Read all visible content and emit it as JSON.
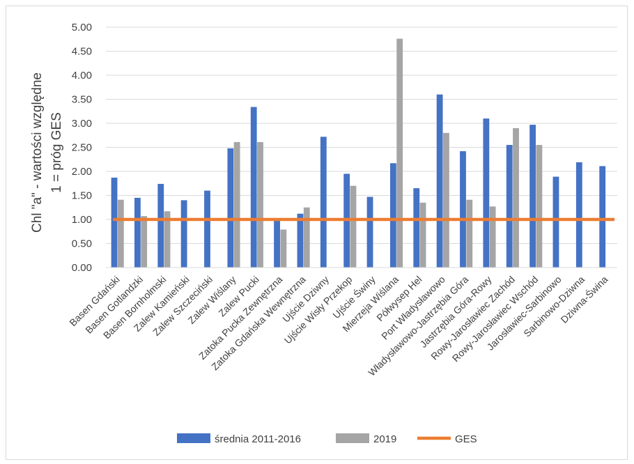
{
  "chart_data": {
    "type": "bar",
    "ylabel_lines": [
      "Chl \"a\" - wartości względne",
      "1 = próg GES"
    ],
    "ylim": [
      0,
      5
    ],
    "yticks": [
      "0.00",
      "0.50",
      "1.00",
      "1.50",
      "2.00",
      "2.50",
      "3.00",
      "3.50",
      "4.00",
      "4.50",
      "5.00"
    ],
    "grid": true,
    "legend_position": "bottom",
    "categories": [
      "Basen Gdański",
      "Basen Gotlandzki",
      "Basen Bornholmski",
      "Zalew Kamieński",
      "Zalew Szczeciński",
      "Zalew Wiślany",
      "Zalew Pucki",
      "Zatoka Pucka Zewnętrzna",
      "Zatoka Gdańska Wewnętrzna",
      "Ujście Dziwny",
      "Ujście Wisły Przekop",
      "Ujście Świny",
      "Mierzeja Wiślana",
      "Półwysep Hel",
      "Port Władysławowo",
      "Władysławowo-Jastrzębia Góra",
      "Jastrzębia Góra-Rowy",
      "Rowy-Jarosławiec Zachód",
      "Rowy-Jarosławiec Wschód",
      "Jarosławiec-Sarbinowo",
      "Sarbinowo-Dziwna",
      "Dziwna-Świna"
    ],
    "series": [
      {
        "name": "średnia 2011-2016",
        "color": "#4472c4",
        "values": [
          1.87,
          1.45,
          1.74,
          1.4,
          1.6,
          2.48,
          3.34,
          0.97,
          1.12,
          2.72,
          1.95,
          1.47,
          2.17,
          1.65,
          3.6,
          2.42,
          3.1,
          2.55,
          2.97,
          1.89,
          2.19,
          2.11
        ]
      },
      {
        "name": "2019",
        "color": "#a5a5a5",
        "values": [
          1.41,
          1.07,
          1.17,
          null,
          null,
          2.61,
          2.61,
          0.79,
          1.25,
          null,
          1.7,
          null,
          4.76,
          1.35,
          2.8,
          1.41,
          1.27,
          2.9,
          2.55,
          null,
          null,
          null
        ]
      }
    ],
    "reference_line": {
      "name": "GES",
      "value": 1.0,
      "color": "#ed7d31"
    }
  }
}
